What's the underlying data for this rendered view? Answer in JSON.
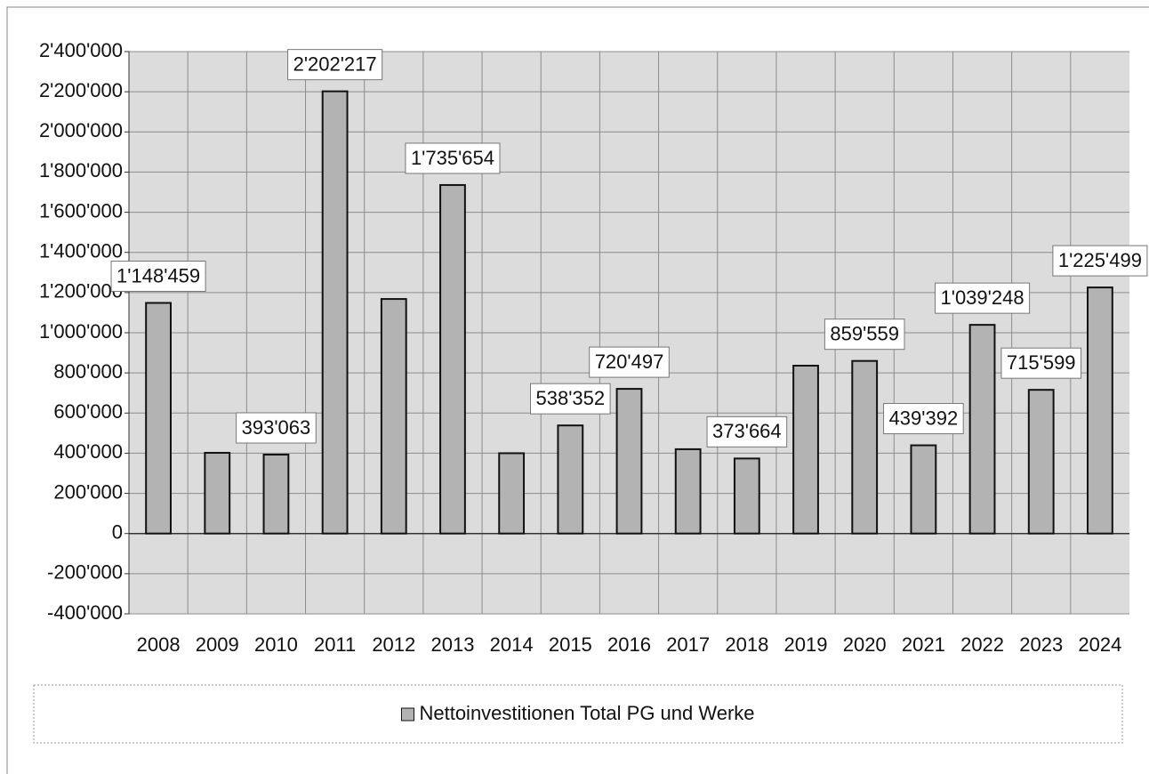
{
  "chart_data": {
    "type": "bar",
    "categories": [
      "2008",
      "2009",
      "2010",
      "2011",
      "2012",
      "2013",
      "2014",
      "2015",
      "2016",
      "2017",
      "2018",
      "2019",
      "2020",
      "2021",
      "2022",
      "2023",
      "2024"
    ],
    "series": [
      {
        "name": "Nettoinvestitionen Total PG und Werke",
        "color": "#b3b3b3",
        "values": [
          1148459,
          402000,
          393063,
          2202217,
          1168000,
          1735654,
          400000,
          538352,
          720497,
          420000,
          373664,
          836000,
          859559,
          439392,
          1039248,
          715599,
          1225499
        ],
        "value_labels": [
          "1'148'459",
          null,
          "393'063",
          "2'202'217",
          null,
          "1'735'654",
          null,
          "538'352",
          "720'497",
          null,
          "373'664",
          null,
          "859'559",
          "439'392",
          "1'039'248",
          "715'599",
          "1'225'499"
        ]
      }
    ],
    "ylim": [
      -400000,
      2400000
    ],
    "yticks": [
      {
        "value": -400000,
        "label": "-400'000"
      },
      {
        "value": -200000,
        "label": "-200'000"
      },
      0,
      {
        "value": 200000,
        "label": "200'000"
      },
      {
        "value": 400000,
        "label": "400'000"
      },
      {
        "value": 600000,
        "label": "600'000"
      },
      {
        "value": 800000,
        "label": "800'000"
      },
      {
        "value": 1000000,
        "label": "1'000'000"
      },
      {
        "value": 1200000,
        "label": "1'200'000"
      },
      {
        "value": 1400000,
        "label": "1'400'000"
      },
      {
        "value": 1600000,
        "label": "1'600'000"
      },
      {
        "value": 1800000,
        "label": "1'800'000"
      },
      {
        "value": 2000000,
        "label": "2'000'000"
      },
      {
        "value": 2200000,
        "label": "2'200'000"
      },
      {
        "value": 2400000,
        "label": "2'400'000"
      }
    ],
    "grid": true,
    "legend": "bottom"
  }
}
